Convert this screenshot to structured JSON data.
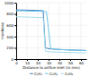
{
  "chart_data": {
    "type": "line",
    "title": "",
    "xlabel": "Distance to orifice inlet (in mm)",
    "ylabel": "Hardness",
    "xlim": [
      0,
      65
    ],
    "ylim": [
      0,
      1000
    ],
    "xticks": [
      0,
      10,
      20,
      30,
      40,
      50,
      60
    ],
    "yticks": [
      0,
      200,
      400,
      600,
      800,
      1000
    ],
    "grid": true,
    "legend": "bottom",
    "series": [
      {
        "name": "C₂H₂",
        "color": "#3a7fbf",
        "x": [
          0,
          5,
          10,
          15,
          20,
          25,
          27,
          30,
          35,
          40,
          45,
          50,
          55,
          60,
          65
        ],
        "values": [
          870,
          870,
          868,
          865,
          862,
          858,
          200,
          185,
          175,
          170,
          165,
          160,
          158,
          155,
          152
        ]
      },
      {
        "name": "C₂H₄",
        "color": "#6fc8e8",
        "x": [
          0,
          5,
          10,
          15,
          20,
          25,
          28,
          32,
          35,
          40,
          45,
          50,
          55,
          60,
          65
        ],
        "values": [
          855,
          855,
          852,
          850,
          848,
          845,
          840,
          185,
          175,
          170,
          165,
          162,
          158,
          155,
          152
        ]
      },
      {
        "name": "C₂H₆",
        "color": "#a8dff0",
        "x": [
          0,
          5,
          10,
          15,
          20,
          25,
          27,
          30,
          35,
          40,
          45,
          50,
          55,
          60,
          65
        ],
        "values": [
          750,
          748,
          745,
          742,
          738,
          735,
          140,
          130,
          125,
          122,
          120,
          118,
          115,
          113,
          112
        ]
      }
    ]
  }
}
